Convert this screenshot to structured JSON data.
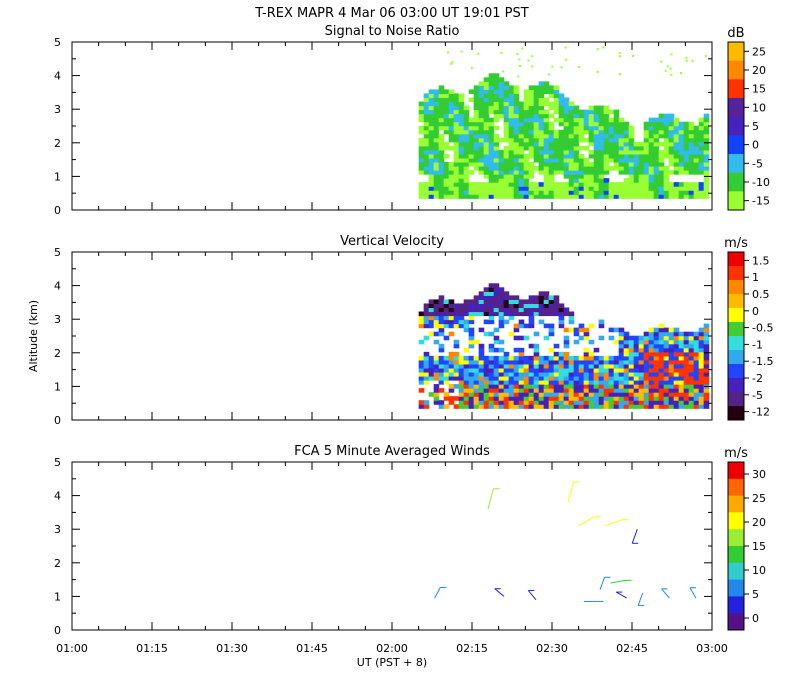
{
  "header": {
    "title": "T-REX   MAPR   4 Mar 06   03:00 UT   19:01   PST"
  },
  "axes": {
    "ylabel": "Altitude  (km)",
    "xlabel": "UT  (PST + 8)",
    "x_ticks": [
      "01:00",
      "01:15",
      "01:30",
      "01:45",
      "02:00",
      "02:15",
      "02:30",
      "02:45",
      "03:00"
    ],
    "y_ticks": [
      "0",
      "1",
      "2",
      "3",
      "4",
      "5"
    ]
  },
  "colors": {
    "snr": [
      "#99ff33",
      "#33cc33",
      "#33bbee",
      "#1144ff",
      "#4422bb",
      "#552299",
      "#ff3300",
      "#ff8800",
      "#ffbb00"
    ],
    "velocity": [
      "#220011",
      "#552288",
      "#4422bb",
      "#2244ff",
      "#33aaee",
      "#33dddd",
      "#44cc33",
      "#ffff00",
      "#ffbb00",
      "#ff8800",
      "#ff3300",
      "#ee0000"
    ],
    "wind": [
      "#551188",
      "#2222dd",
      "#2288ee",
      "#33cccc",
      "#33cc33",
      "#99ee33",
      "#ffff00",
      "#ffaa00",
      "#ff6600",
      "#ee0000"
    ]
  },
  "chart_data": [
    {
      "type": "heatmap",
      "title": "Signal to Noise Ratio",
      "xlabel": "",
      "ylabel": "",
      "x_range": [
        "01:00",
        "03:00"
      ],
      "ylim": [
        0,
        5
      ],
      "colorbar": {
        "unit": "dB",
        "ticks": [
          "25",
          "20",
          "15",
          "10",
          "5",
          "0",
          "-5",
          "-10",
          "-15"
        ]
      },
      "data_extent": {
        "x_start": "02:05",
        "x_end": "02:59",
        "y_min": 0.35,
        "y_max": 3.9
      },
      "grid": false
    },
    {
      "type": "heatmap",
      "title": "Vertical Velocity",
      "xlabel": "",
      "ylabel": "Altitude  (km)",
      "x_range": [
        "01:00",
        "03:00"
      ],
      "ylim": [
        0,
        5
      ],
      "colorbar": {
        "unit": "m/s",
        "ticks": [
          "1.5",
          "1",
          "0.5",
          "0",
          "-0.5",
          "-1",
          "-1.5",
          "-2",
          "-5",
          "-12"
        ]
      },
      "data_extent": {
        "x_start": "02:05",
        "x_end": "02:59",
        "y_min": 0.35,
        "y_max": 3.9
      },
      "grid": false
    },
    {
      "type": "scatter",
      "title": "FCA 5 Minute Averaged Winds",
      "xlabel": "UT  (PST + 8)",
      "ylabel": "",
      "x_range": [
        "01:00",
        "03:00"
      ],
      "ylim": [
        0,
        5
      ],
      "colorbar": {
        "unit": "m/s",
        "ticks": [
          "30",
          "25",
          "20",
          "15",
          "10",
          "5",
          "0"
        ]
      },
      "grid": false
    }
  ]
}
